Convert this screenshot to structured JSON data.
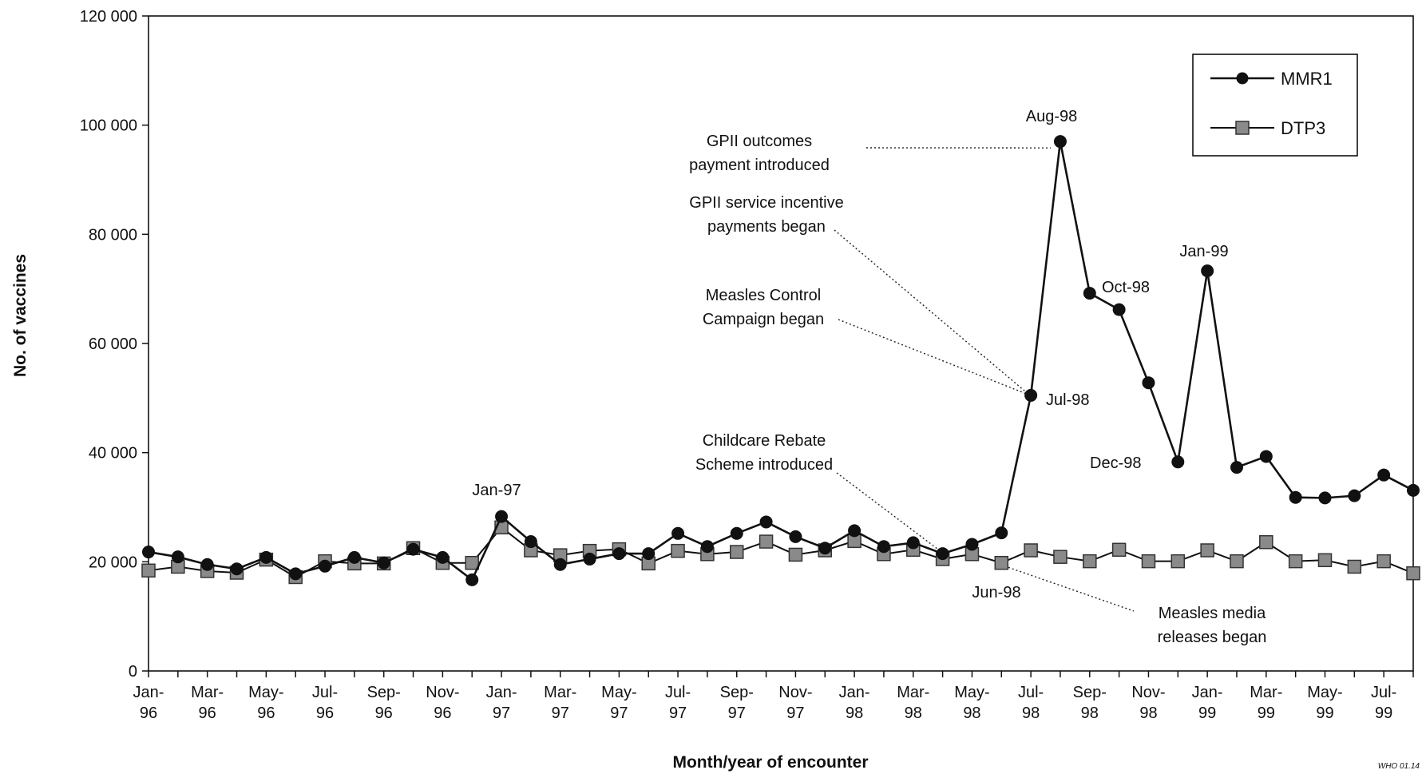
{
  "chart_data": {
    "type": "line",
    "title": "",
    "xlabel": "Month/year of encounter",
    "ylabel": "No. of vaccines",
    "ylim": [
      0,
      120000
    ],
    "grid": false,
    "legend_position": "top-right",
    "x": [
      "Jan-96",
      "Feb-96",
      "Mar-96",
      "Apr-96",
      "May-96",
      "Jun-96",
      "Jul-96",
      "Aug-96",
      "Sep-96",
      "Oct-96",
      "Nov-96",
      "Dec-96",
      "Jan-97",
      "Feb-97",
      "Mar-97",
      "Apr-97",
      "May-97",
      "Jun-97",
      "Jul-97",
      "Aug-97",
      "Sep-97",
      "Oct-97",
      "Nov-97",
      "Dec-97",
      "Jan-98",
      "Feb-98",
      "Mar-98",
      "Apr-98",
      "May-98",
      "Jun-98",
      "Jul-98",
      "Aug-98",
      "Sep-98",
      "Oct-98",
      "Nov-98",
      "Dec-98",
      "Jan-99",
      "Feb-99",
      "Mar-99",
      "Apr-99",
      "May-99",
      "Jun-99",
      "Jul-99",
      "Aug-99"
    ],
    "y_ticks": [
      {
        "value": 0,
        "label": "0"
      },
      {
        "value": 20000,
        "label": "20 000"
      },
      {
        "value": 40000,
        "label": "40 000"
      },
      {
        "value": 60000,
        "label": "60 000"
      },
      {
        "value": 80000,
        "label": "80 000"
      },
      {
        "value": 100000,
        "label": "100 000"
      },
      {
        "value": 120000,
        "label": "120 000"
      }
    ],
    "x_tick_labels": [
      {
        "x": "Jan-96",
        "top": "Jan-",
        "bottom": "96"
      },
      {
        "x": "Mar-96",
        "top": "Mar-",
        "bottom": "96"
      },
      {
        "x": "May-96",
        "top": "May-",
        "bottom": "96"
      },
      {
        "x": "Jul-96",
        "top": "Jul-",
        "bottom": "96"
      },
      {
        "x": "Sep-96",
        "top": "Sep-",
        "bottom": "96"
      },
      {
        "x": "Nov-96",
        "top": "Nov-",
        "bottom": "96"
      },
      {
        "x": "Jan-97",
        "top": "Jan-",
        "bottom": "97"
      },
      {
        "x": "Mar-97",
        "top": "Mar-",
        "bottom": "97"
      },
      {
        "x": "May-97",
        "top": "May-",
        "bottom": "97"
      },
      {
        "x": "Jul-97",
        "top": "Jul-",
        "bottom": "97"
      },
      {
        "x": "Sep-97",
        "top": "Sep-",
        "bottom": "97"
      },
      {
        "x": "Nov-97",
        "top": "Nov-",
        "bottom": "97"
      },
      {
        "x": "Jan-98",
        "top": "Jan-",
        "bottom": "98"
      },
      {
        "x": "Mar-98",
        "top": "Mar-",
        "bottom": "98"
      },
      {
        "x": "May-98",
        "top": "May-",
        "bottom": "98"
      },
      {
        "x": "Jul-98",
        "top": "Jul-",
        "bottom": "98"
      },
      {
        "x": "Sep-98",
        "top": "Sep-",
        "bottom": "98"
      },
      {
        "x": "Nov-98",
        "top": "Nov-",
        "bottom": "98"
      },
      {
        "x": "Jan-99",
        "top": "Jan-",
        "bottom": "99"
      },
      {
        "x": "Mar-99",
        "top": "Mar-",
        "bottom": "99"
      },
      {
        "x": "May-99",
        "top": "May-",
        "bottom": "99"
      },
      {
        "x": "Jul-99",
        "top": "Jul-",
        "bottom": "99"
      }
    ],
    "series": [
      {
        "name": "MMR1",
        "marker": "circle",
        "color": "#111111",
        "values": [
          21800,
          20900,
          19500,
          18700,
          20800,
          17800,
          19200,
          20800,
          19800,
          22300,
          20800,
          16700,
          28300,
          23700,
          19500,
          20500,
          21500,
          21500,
          25200,
          22800,
          25200,
          27300,
          24600,
          22500,
          25700,
          22800,
          23500,
          21500,
          23200,
          25300,
          50500,
          97000,
          69200,
          66200,
          52800,
          38300,
          73300,
          37300,
          39300,
          31800,
          31700,
          32100,
          35900,
          33100
        ]
      },
      {
        "name": "DTP3",
        "marker": "square",
        "color": "#111111",
        "values": [
          18400,
          19100,
          18300,
          18000,
          20400,
          17200,
          20100,
          19700,
          19700,
          22500,
          19800,
          19800,
          26300,
          22100,
          21200,
          22000,
          22300,
          19700,
          22000,
          21400,
          21800,
          23700,
          21300,
          22100,
          23800,
          21400,
          22200,
          20500,
          21400,
          19800,
          22100,
          20900,
          20100,
          22200,
          20100,
          20100,
          22100,
          20100,
          23600,
          20100,
          20300,
          19100,
          20100,
          17900
        ]
      }
    ],
    "annotations": [
      {
        "lines": [
          "Jan-97"
        ]
      },
      {
        "lines": [
          "Aug-98"
        ]
      },
      {
        "lines": [
          "Jul-98"
        ]
      },
      {
        "lines": [
          "Oct-98"
        ]
      },
      {
        "lines": [
          "Dec-98"
        ]
      },
      {
        "lines": [
          "Jan-99"
        ]
      },
      {
        "lines": [
          "Jun-98"
        ]
      },
      {
        "lines": [
          "GPII outcomes",
          "payment introduced"
        ]
      },
      {
        "lines": [
          "GPII service incentive",
          "payments began"
        ]
      },
      {
        "lines": [
          "Measles Control",
          "Campaign began"
        ]
      },
      {
        "lines": [
          "Childcare Rebate",
          "Scheme introduced"
        ]
      },
      {
        "lines": [
          "Measles media",
          "releases began"
        ]
      }
    ]
  },
  "credit": "WHO 01.14"
}
